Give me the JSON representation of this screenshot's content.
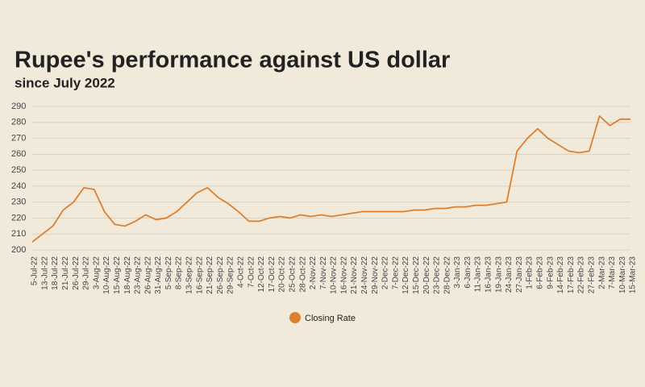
{
  "chart_data": {
    "type": "line",
    "title": "Rupee's performance against US dollar",
    "subtitle": "since July 2022",
    "categories": [
      "5-Jul-22",
      "13-Jul-22",
      "18-Jul-22",
      "21-Jul-22",
      "26-Jul-22",
      "29-Jul-22",
      "3-Aug-22",
      "10-Aug-22",
      "15-Aug-22",
      "18-Aug-22",
      "23-Aug-22",
      "26-Aug-22",
      "31-Aug-22",
      "5-Sep-22",
      "8-Sep-22",
      "13-Sep-22",
      "16-Sep-22",
      "21-Sep-22",
      "26-Sep-22",
      "29-Sep-22",
      "4-Oct-22",
      "7-Oct-22",
      "12-Oct-22",
      "17-Oct-22",
      "20-Oct-22",
      "25-Oct-22",
      "28-Oct-22",
      "2-Nov-22",
      "7-Nov-22",
      "10-Nov-22",
      "16-Nov-22",
      "21-Nov-22",
      "24-Nov-22",
      "29-Nov-22",
      "2-Dec-22",
      "7-Dec-22",
      "12-Dec-22",
      "15-Dec-22",
      "20-Dec-22",
      "23-Dec-22",
      "28-Dec-22",
      "3-Jan-23",
      "6-Jan-23",
      "11-Jan-23",
      "16-Jan-23",
      "19-Jan-23",
      "24-Jan-23",
      "27-Jan-23",
      "1-Feb-23",
      "6-Feb-23",
      "9-Feb-23",
      "14-Feb-23",
      "17-Feb-23",
      "22-Feb-23",
      "27-Feb-23",
      "2-Mar-23",
      "7-Mar-23",
      "10-Mar-23",
      "15-Mar-23"
    ],
    "series": [
      {
        "name": "Closing Rate",
        "color": "#dc8030",
        "values": [
          205,
          210,
          215,
          225,
          230,
          239,
          238,
          224,
          216,
          215,
          218,
          222,
          219,
          220,
          224,
          230,
          236,
          239,
          233,
          229,
          224,
          218,
          218,
          220,
          221,
          220,
          222,
          221,
          222,
          221,
          222,
          223,
          224,
          224,
          224,
          224,
          224,
          225,
          225,
          226,
          226,
          227,
          227,
          228,
          228,
          229,
          230,
          262,
          270,
          276,
          270,
          266,
          262,
          261,
          262,
          284,
          278,
          282,
          282
        ]
      }
    ],
    "ylim": [
      200,
      290
    ],
    "yticks": [
      200,
      210,
      220,
      230,
      240,
      250,
      260,
      270,
      280,
      290
    ],
    "grid": true
  }
}
